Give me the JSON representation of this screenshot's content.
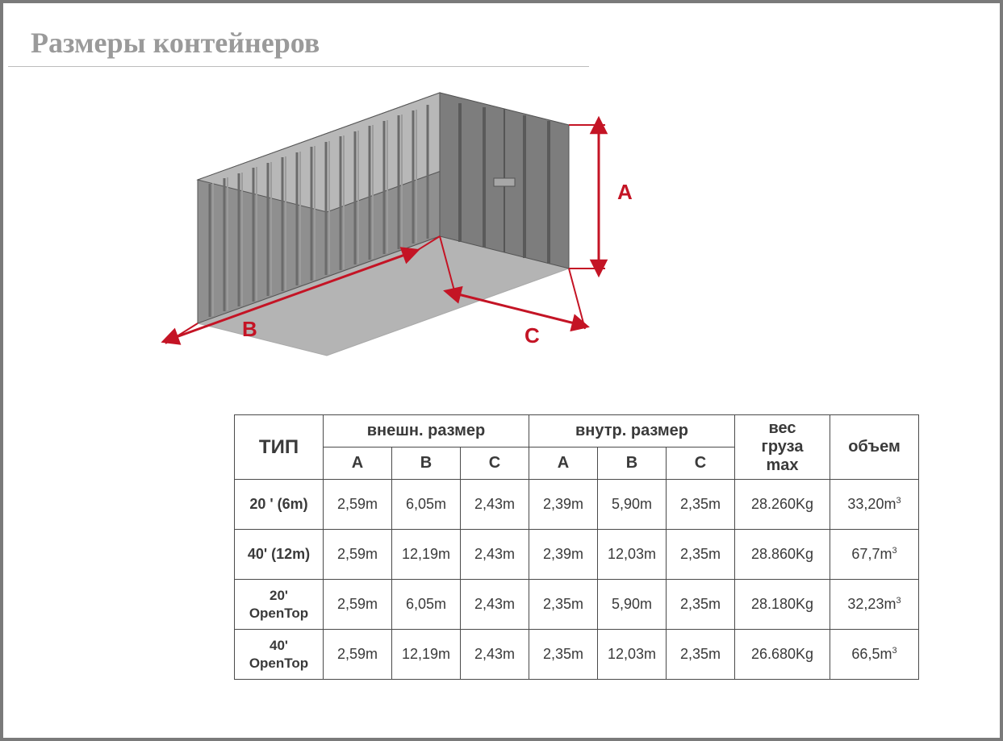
{
  "title": "Размеры контейнеров",
  "diagram": {
    "labels": {
      "height": "A",
      "length": "B",
      "width": "C"
    },
    "colors": {
      "arrow": "#c41425",
      "container_fill": "#8f8f8f",
      "container_dark": "#6b6b6b",
      "container_light": "#b8b8b8",
      "rib": "#787878",
      "rib_hi": "#9c9c9c",
      "door_panel": "#7d7d7d"
    }
  },
  "table": {
    "headers": {
      "type": "ТИП",
      "external": "внешн. размер",
      "internal": "внутр. размер",
      "weight_l1": "вес",
      "weight_l2": "груза",
      "weight_l3": "max",
      "volume": "объем",
      "A": "A",
      "B": "B",
      "C": "C"
    },
    "rows": [
      {
        "type": "20 ' (6m)",
        "eA": "2,59m",
        "eB": "6,05m",
        "eC": "2,43m",
        "iA": "2,39m",
        "iB": "5,90m",
        "iC": "2,35m",
        "wt": "28.260Kg",
        "vol": "33,20m",
        "vexp": "3"
      },
      {
        "type": "40' (12m)",
        "eA": "2,59m",
        "eB": "12,19m",
        "eC": "2,43m",
        "iA": "2,39m",
        "iB": "12,03m",
        "iC": "2,35m",
        "wt": "28.860Kg",
        "vol": "67,7m",
        "vexp": "3"
      },
      {
        "type": "20'\nOpenTop",
        "eA": "2,59m",
        "eB": "6,05m",
        "eC": "2,43m",
        "iA": "2,35m",
        "iB": "5,90m",
        "iC": "2,35m",
        "wt": "28.180Kg",
        "vol": "32,23m",
        "vexp": "3"
      },
      {
        "type": "40'\nOpenTop",
        "eA": "2,59m",
        "eB": "12,19m",
        "eC": "2,43m",
        "iA": "2,35m",
        "iB": "12,03m",
        "iC": "2,35m",
        "wt": "26.680Kg",
        "vol": "66,5m",
        "vexp": "3"
      }
    ],
    "style": {
      "border_color": "#4a4a4a",
      "header_fontsize": 20,
      "cell_fontsize": 18,
      "font_family": "Verdana, Arial, sans-serif"
    }
  }
}
